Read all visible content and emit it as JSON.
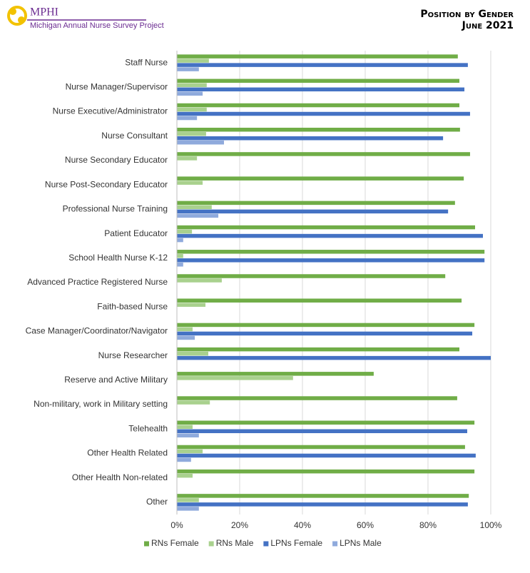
{
  "logo": {
    "name": "MPHI",
    "tagline": "Michigan Annual Nurse Survey Project"
  },
  "chart_data": {
    "type": "hbar",
    "title": "Position by Gender",
    "subtitle": "June 2021",
    "categories": [
      "Staff Nurse",
      "Nurse Manager/Supervisor",
      "Nurse Executive/Administrator",
      "Nurse Consultant",
      "Nurse Secondary Educator",
      "Nurse Post-Secondary Educator",
      "Professional Nurse Training",
      "Patient Educator",
      "School Health Nurse K-12",
      "Advanced Practice Registered Nurse",
      "Faith-based Nurse",
      "Case Manager/Coordinator/Navigator",
      "Nurse Researcher",
      "Reserve and Active Military",
      "Non-military, work in Military setting",
      "Telehealth",
      "Other Health Related",
      "Other Health Non-related",
      "Other"
    ],
    "series": [
      {
        "name": "RNs Female",
        "color": "#70ad47",
        "values": [
          89.5,
          90,
          90,
          90.2,
          93.4,
          91.4,
          88.6,
          95,
          98,
          85.5,
          90.7,
          94.8,
          90,
          62.7,
          89.3,
          94.8,
          91.8,
          94.8,
          93
        ]
      },
      {
        "name": "RNs Male",
        "color": "#a9d18e",
        "values": [
          10.2,
          9.5,
          9.5,
          9.3,
          6.4,
          8.2,
          11.1,
          4.8,
          2,
          14.3,
          9.1,
          5,
          10,
          37,
          10.5,
          5,
          8.2,
          5,
          7
        ]
      },
      {
        "name": "LPNs Female",
        "color": "#4472c4",
        "values": [
          92.7,
          91.6,
          93.4,
          84.8,
          null,
          null,
          86.4,
          97.5,
          98,
          null,
          null,
          94.1,
          100,
          null,
          null,
          92.5,
          95.2,
          null,
          92.7
        ]
      },
      {
        "name": "LPNs Male",
        "color": "#8faadc",
        "values": [
          7,
          8.2,
          6.4,
          15,
          null,
          null,
          13.2,
          2,
          2,
          null,
          null,
          5.7,
          null,
          null,
          null,
          7,
          4.5,
          null,
          7
        ]
      }
    ],
    "xlim": [
      0,
      100
    ],
    "xticks": [
      {
        "value": 0,
        "label": "0%"
      },
      {
        "value": 20,
        "label": "20%"
      },
      {
        "value": 40,
        "label": "40%"
      },
      {
        "value": 60,
        "label": "60%"
      },
      {
        "value": 80,
        "label": "80%"
      },
      {
        "value": 100,
        "label": "100%"
      }
    ],
    "grid": true,
    "legend": "bottom"
  }
}
